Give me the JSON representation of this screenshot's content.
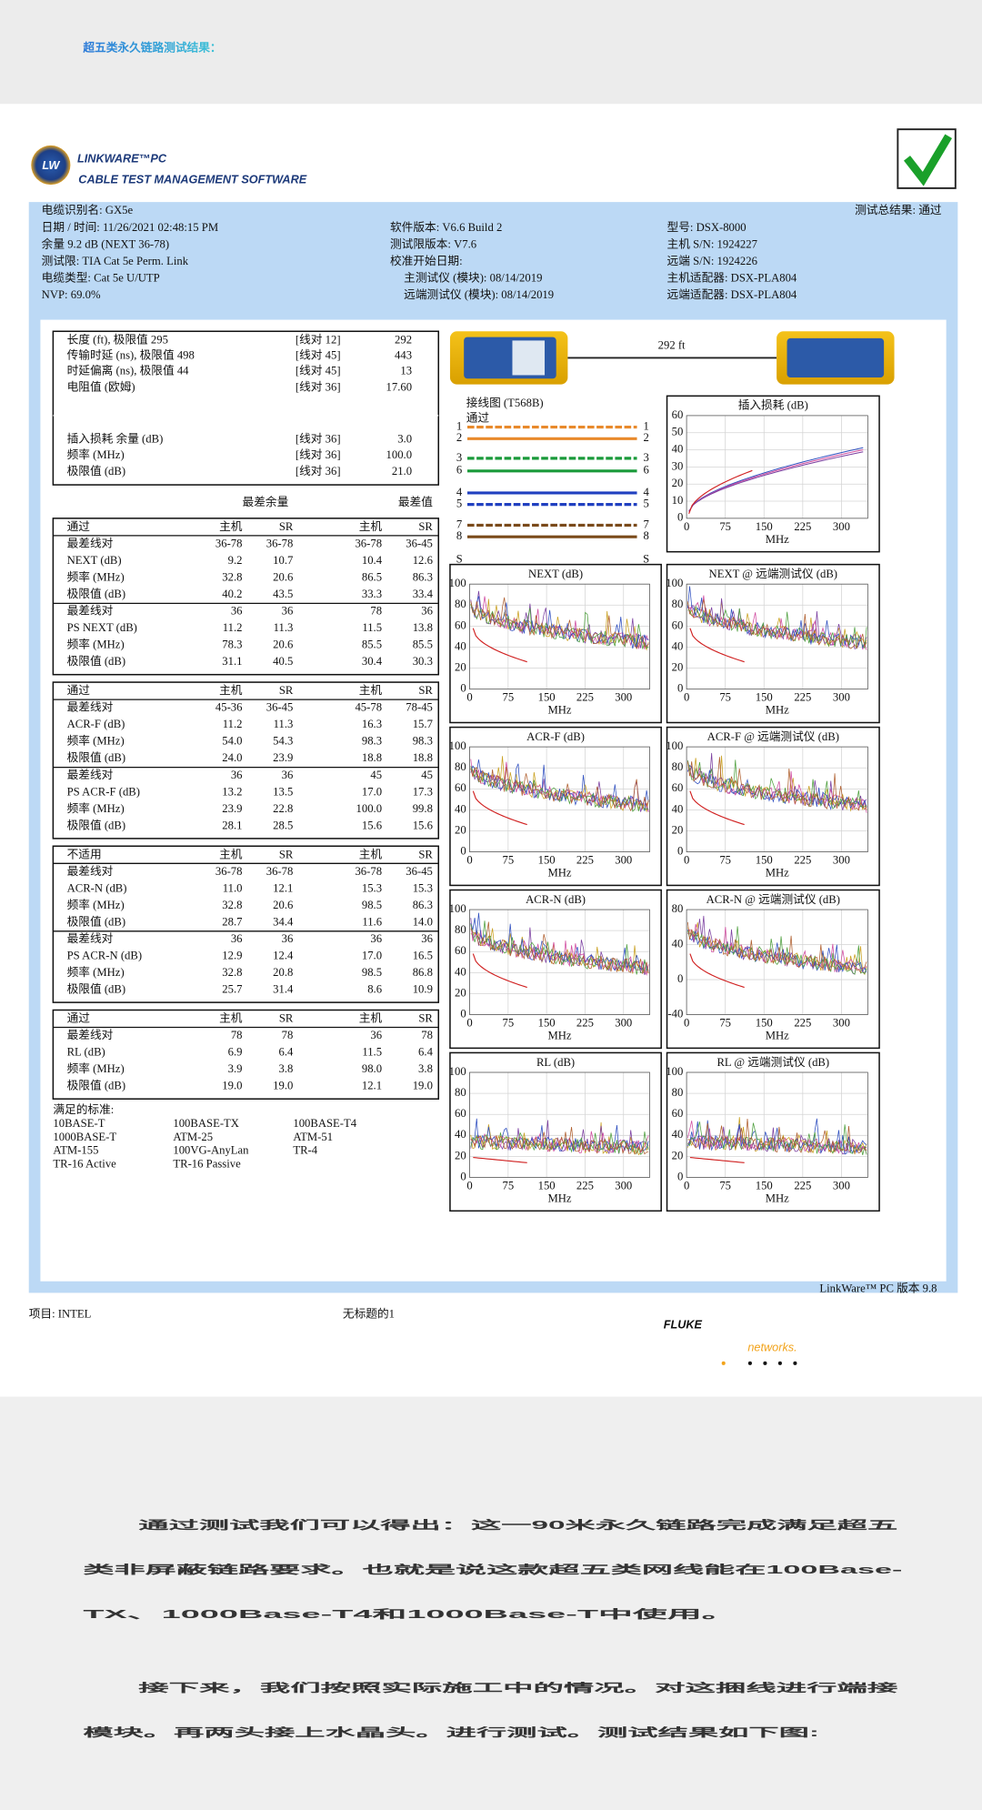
{
  "header": {
    "title": "超五类永久链路测试结果："
  },
  "report": {
    "logo": {
      "badge": "LW",
      "brand": "LINKWARE™PC",
      "subtitle": "CABLE TEST MANAGEMENT SOFTWARE"
    },
    "cable_id": "电缆识别名: GX5e",
    "overall": "测试总结果: 通过",
    "info": [
      [
        "日期 / 时间: 11/26/2021  02:48:15 PM",
        "软件版本: V6.6 Build 2",
        "型号: DSX-8000"
      ],
      [
        "余量 9.2 dB (NEXT 36-78)",
        "测试限版本: V7.6",
        "主机 S/N: 1924227"
      ],
      [
        "测试限: TIA Cat 5e Perm. Link",
        "校准开始日期:",
        "远端 S/N: 1924226"
      ],
      [
        "电缆类型: Cat 5e U/UTP",
        "主测试仪 (模块): 08/14/2019",
        "主机适配器: DSX-PLA804"
      ],
      [
        "NVP: 69.0%",
        "远端测试仪 (模块): 08/14/2019",
        "远端适配器: DSX-PLA804"
      ]
    ],
    "length_table": [
      [
        "长度 (ft), 极限值 295",
        "[线对 12]",
        "292"
      ],
      [
        "传输时延 (ns), 极限值 498",
        "[线对 45]",
        "443"
      ],
      [
        "时延偏离 (ns), 极限值 44",
        "[线对 45]",
        "13"
      ],
      [
        "电阻值 (欧姆)",
        "[线对 36]",
        "17.60"
      ],
      [
        "插入损耗 余量 (dB)",
        "[线对 36]",
        "3.0"
      ],
      [
        "频率 (MHz)",
        "[线对 36]",
        "100.0"
      ],
      [
        "极限值 (dB)",
        "[线对 36]",
        "21.0"
      ]
    ],
    "summary_headers": [
      "最差余量",
      "最差值"
    ],
    "results": [
      [
        [
          "通过",
          "主机",
          "SR",
          "主机",
          "SR"
        ],
        [
          "最差线对",
          "36-78",
          "36-78",
          "36-78",
          "36-45"
        ],
        [
          "NEXT (dB)",
          "9.2",
          "10.7",
          "10.4",
          "12.6"
        ],
        [
          "频率 (MHz)",
          "32.8",
          "20.6",
          "86.5",
          "86.3"
        ],
        [
          "极限值 (dB)",
          "40.2",
          "43.5",
          "33.3",
          "33.4"
        ],
        [
          "最差线对",
          "36",
          "36",
          "78",
          "36"
        ],
        [
          "PS NEXT (dB)",
          "11.2",
          "11.3",
          "11.5",
          "13.8"
        ],
        [
          "频率 (MHz)",
          "78.3",
          "20.6",
          "85.5",
          "85.5"
        ],
        [
          "极限值 (dB)",
          "31.1",
          "40.5",
          "30.4",
          "30.3"
        ]
      ],
      [
        [
          "通过",
          "主机",
          "SR",
          "主机",
          "SR"
        ],
        [
          "最差线对",
          "45-36",
          "36-45",
          "45-78",
          "78-45"
        ],
        [
          "ACR-F (dB)",
          "11.2",
          "11.3",
          "16.3",
          "15.7"
        ],
        [
          "频率 (MHz)",
          "54.0",
          "54.3",
          "98.3",
          "98.3"
        ],
        [
          "极限值 (dB)",
          "24.0",
          "23.9",
          "18.8",
          "18.8"
        ],
        [
          "最差线对",
          "36",
          "36",
          "45",
          "45"
        ],
        [
          "PS ACR-F (dB)",
          "13.2",
          "13.5",
          "17.0",
          "17.3"
        ],
        [
          "频率 (MHz)",
          "23.9",
          "22.8",
          "100.0",
          "99.8"
        ],
        [
          "极限值 (dB)",
          "28.1",
          "28.5",
          "15.6",
          "15.6"
        ]
      ],
      [
        [
          "不适用",
          "主机",
          "SR",
          "主机",
          "SR"
        ],
        [
          "最差线对",
          "36-78",
          "36-78",
          "36-78",
          "36-45"
        ],
        [
          "ACR-N (dB)",
          "11.0",
          "12.1",
          "15.3",
          "15.3"
        ],
        [
          "频率 (MHz)",
          "32.8",
          "20.6",
          "98.5",
          "86.3"
        ],
        [
          "极限值 (dB)",
          "28.7",
          "34.4",
          "11.6",
          "14.0"
        ],
        [
          "最差线对",
          "36",
          "36",
          "36",
          "36"
        ],
        [
          "PS ACR-N (dB)",
          "12.9",
          "12.4",
          "17.0",
          "16.5"
        ],
        [
          "频率 (MHz)",
          "32.8",
          "20.8",
          "98.5",
          "86.8"
        ],
        [
          "极限值 (dB)",
          "25.7",
          "31.4",
          "8.6",
          "10.9"
        ]
      ],
      [
        [
          "通过",
          "主机",
          "SR",
          "主机",
          "SR"
        ],
        [
          "最差线对",
          "78",
          "78",
          "36",
          "78"
        ],
        [
          "RL (dB)",
          "6.9",
          "6.4",
          "11.5",
          "6.4"
        ],
        [
          "频率 (MHz)",
          "3.9",
          "3.8",
          "98.0",
          "3.8"
        ],
        [
          "极限值 (dB)",
          "19.0",
          "19.0",
          "12.1",
          "19.0"
        ]
      ]
    ],
    "standards": {
      "title": "满足的标准:",
      "items": [
        [
          "10BASE-T",
          "100BASE-TX",
          "100BASE-T4"
        ],
        [
          "1000BASE-T",
          "ATM-25",
          "ATM-51"
        ],
        [
          "ATM-155",
          "100VG-AnyLan",
          "TR-4"
        ],
        [
          "TR-16 Active",
          "TR-16 Passive"
        ]
      ]
    },
    "distance": "292 ft",
    "wiremap": {
      "title": "接线图 (T568B)",
      "status": "通过",
      "pins": [
        "1",
        "2",
        "3",
        "6",
        "4",
        "5",
        "7",
        "8",
        "S"
      ]
    },
    "graphs": [
      {
        "title": "插入损耗 (dB)",
        "yticks": [
          60,
          50,
          40,
          30,
          20,
          10,
          0
        ],
        "xticks": [
          0,
          75,
          150,
          225,
          300
        ],
        "xlabel": "MHz"
      },
      {
        "title": "NEXT (dB)",
        "yticks": [
          100,
          80,
          60,
          40,
          20,
          0
        ],
        "xticks": [
          0,
          75,
          150,
          225,
          300
        ],
        "xlabel": "MHz"
      },
      {
        "title": "NEXT @ 远端测试仪 (dB)",
        "yticks": [
          100,
          80,
          60,
          40,
          20,
          0
        ],
        "xticks": [
          0,
          75,
          150,
          225,
          300
        ],
        "xlabel": "MHz"
      },
      {
        "title": "ACR-F (dB)",
        "yticks": [
          100,
          80,
          60,
          40,
          20,
          0
        ],
        "xticks": [
          0,
          75,
          150,
          225,
          300
        ],
        "xlabel": "MHz"
      },
      {
        "title": "ACR-F @ 远端测试仪 (dB)",
        "yticks": [
          100,
          80,
          60,
          40,
          20,
          0
        ],
        "xticks": [
          0,
          75,
          150,
          225,
          300
        ],
        "xlabel": "MHz"
      },
      {
        "title": "ACR-N (dB)",
        "yticks": [
          100,
          80,
          60,
          40,
          20,
          0
        ],
        "xticks": [
          0,
          75,
          150,
          225,
          300
        ],
        "xlabel": "MHz"
      },
      {
        "title": "ACR-N @ 远端测试仪 (dB)",
        "yticks": [
          80,
          40,
          0,
          -40
        ],
        "xticks": [
          0,
          75,
          150,
          225,
          300
        ],
        "xlabel": "MHz"
      },
      {
        "title": "RL (dB)",
        "yticks": [
          100,
          80,
          60,
          40,
          20,
          0
        ],
        "xticks": [
          0,
          75,
          150,
          225,
          300
        ],
        "xlabel": "MHz"
      },
      {
        "title": "RL @ 远端测试仪 (dB)",
        "yticks": [
          100,
          80,
          60,
          40,
          20,
          0
        ],
        "xticks": [
          0,
          75,
          150,
          225,
          300
        ],
        "xlabel": "MHz"
      }
    ],
    "version": "LinkWare™ PC 版本 9.8",
    "footer": {
      "project": "项目: INTEL",
      "file": "无标题的1"
    },
    "fluke": {
      "brand": "FLUKE",
      "sub": "networks."
    }
  },
  "body": {
    "paragraphs": [
      [
        "通过测试我们可以得出：这一90米永久链路完成满足超五",
        "类非屏蔽链路要求。也就是说这款超五类网线能在100Base-",
        "TX、1000Base-T4和1000Base-T中使用。"
      ],
      [
        "接下来，我们按照实际施工中的情况。对这捆线进行端接",
        "模块。再两头接上水晶头。进行测试。测试结果如下图:"
      ]
    ]
  }
}
